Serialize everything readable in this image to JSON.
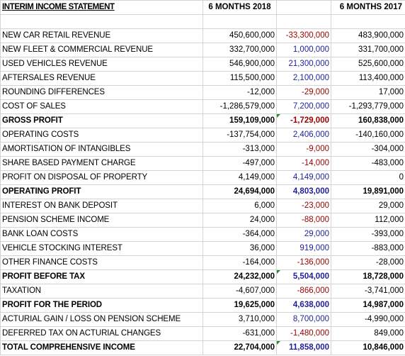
{
  "header": {
    "title": "INTERIM INCOME STATEMENT",
    "col_2018": "6 MONTHS 2018",
    "col_variance": "",
    "col_2017": "6 MONTHS 2017"
  },
  "rows": [
    {
      "label": "NEW CAR RETAIL REVENUE",
      "v2018": "450,600,000",
      "variance": "-33,300,000",
      "v2017": "483,900,000"
    },
    {
      "label": "NEW FLEET & COMMERCIAL REVENUE",
      "v2018": "332,700,000",
      "variance": "1,000,000",
      "v2017": "331,700,000"
    },
    {
      "label": "USED VEHICLES REVENUE",
      "v2018": "546,900,000",
      "variance": "21,300,000",
      "v2017": "525,600,000"
    },
    {
      "label": "AFTERSALES REVENUE",
      "v2018": "115,500,000",
      "variance": "2,100,000",
      "v2017": "113,400,000"
    },
    {
      "label": "ROUNDING DIFFERENCES",
      "v2018": "-12,000",
      "variance": "-29,000",
      "v2017": "17,000"
    },
    {
      "label": "COST OF SALES",
      "v2018": "-1,286,579,000",
      "variance": "7,200,000",
      "v2017": "-1,293,779,000"
    },
    {
      "label": "GROSS PROFIT",
      "v2018": "159,109,000",
      "variance": "-1,729,000",
      "v2017": "160,838,000"
    },
    {
      "label": "OPERATING COSTS",
      "v2018": "-137,754,000",
      "variance": "2,406,000",
      "v2017": "-140,160,000"
    },
    {
      "label": "AMORTISATION OF INTANGIBLES",
      "v2018": "-313,000",
      "variance": "-9,000",
      "v2017": "-304,000"
    },
    {
      "label": "SHARE BASED PAYMENT CHARGE",
      "v2018": "-497,000",
      "variance": "-14,000",
      "v2017": "-483,000"
    },
    {
      "label": "PROFIT ON DISPOSAL OF PROPERTY",
      "v2018": "4,149,000",
      "variance": "4,149,000",
      "v2017": "0"
    },
    {
      "label": "OPERATING PROFIT",
      "v2018": "24,694,000",
      "variance": "4,803,000",
      "v2017": "19,891,000"
    },
    {
      "label": "INTEREST ON BANK DEPOSIT",
      "v2018": "6,000",
      "variance": "-23,000",
      "v2017": "29,000"
    },
    {
      "label": "PENSION SCHEME INCOME",
      "v2018": "24,000",
      "variance": "-88,000",
      "v2017": "112,000"
    },
    {
      "label": "BANK LOAN COSTS",
      "v2018": "-364,000",
      "variance": "29,000",
      "v2017": "-393,000"
    },
    {
      "label": "VEHICLE STOCKING INTEREST",
      "v2018": "36,000",
      "variance": "919,000",
      "v2017": "-883,000"
    },
    {
      "label": "OTHER FINANCE COSTS",
      "v2018": "-164,000",
      "variance": "-136,000",
      "v2017": "-28,000"
    },
    {
      "label": "PROFIT BEFORE TAX",
      "v2018": "24,232,000",
      "variance": "5,504,000",
      "v2017": "18,728,000"
    },
    {
      "label": "TAXATION",
      "v2018": "-4,607,000",
      "variance": "-866,000",
      "v2017": "-3,741,000"
    },
    {
      "label": "PROFIT FOR THE PERIOD",
      "v2018": "19,625,000",
      "variance": "4,638,000",
      "v2017": "14,987,000"
    },
    {
      "label": "ACTURIAL GAIN / LOSS ON PENSION SCHEME",
      "v2018": "3,710,000",
      "variance": "8,700,000",
      "v2017": "-4,990,000"
    },
    {
      "label": "DEFERRED TAX ON ACTURIAL CHANGES",
      "v2018": "-631,000",
      "variance": "-1,480,000",
      "v2017": "849,000"
    },
    {
      "label": "TOTAL COMPREHENSIVE INCOME",
      "v2018": "22,704,000",
      "variance": "11,858,000",
      "v2017": "10,846,000"
    }
  ],
  "colors": {
    "positive_variance": "#1f1f99",
    "negative_variance": "#990000",
    "gridline": "#d4d4d4",
    "comment_marker": "#1f8a3a"
  }
}
